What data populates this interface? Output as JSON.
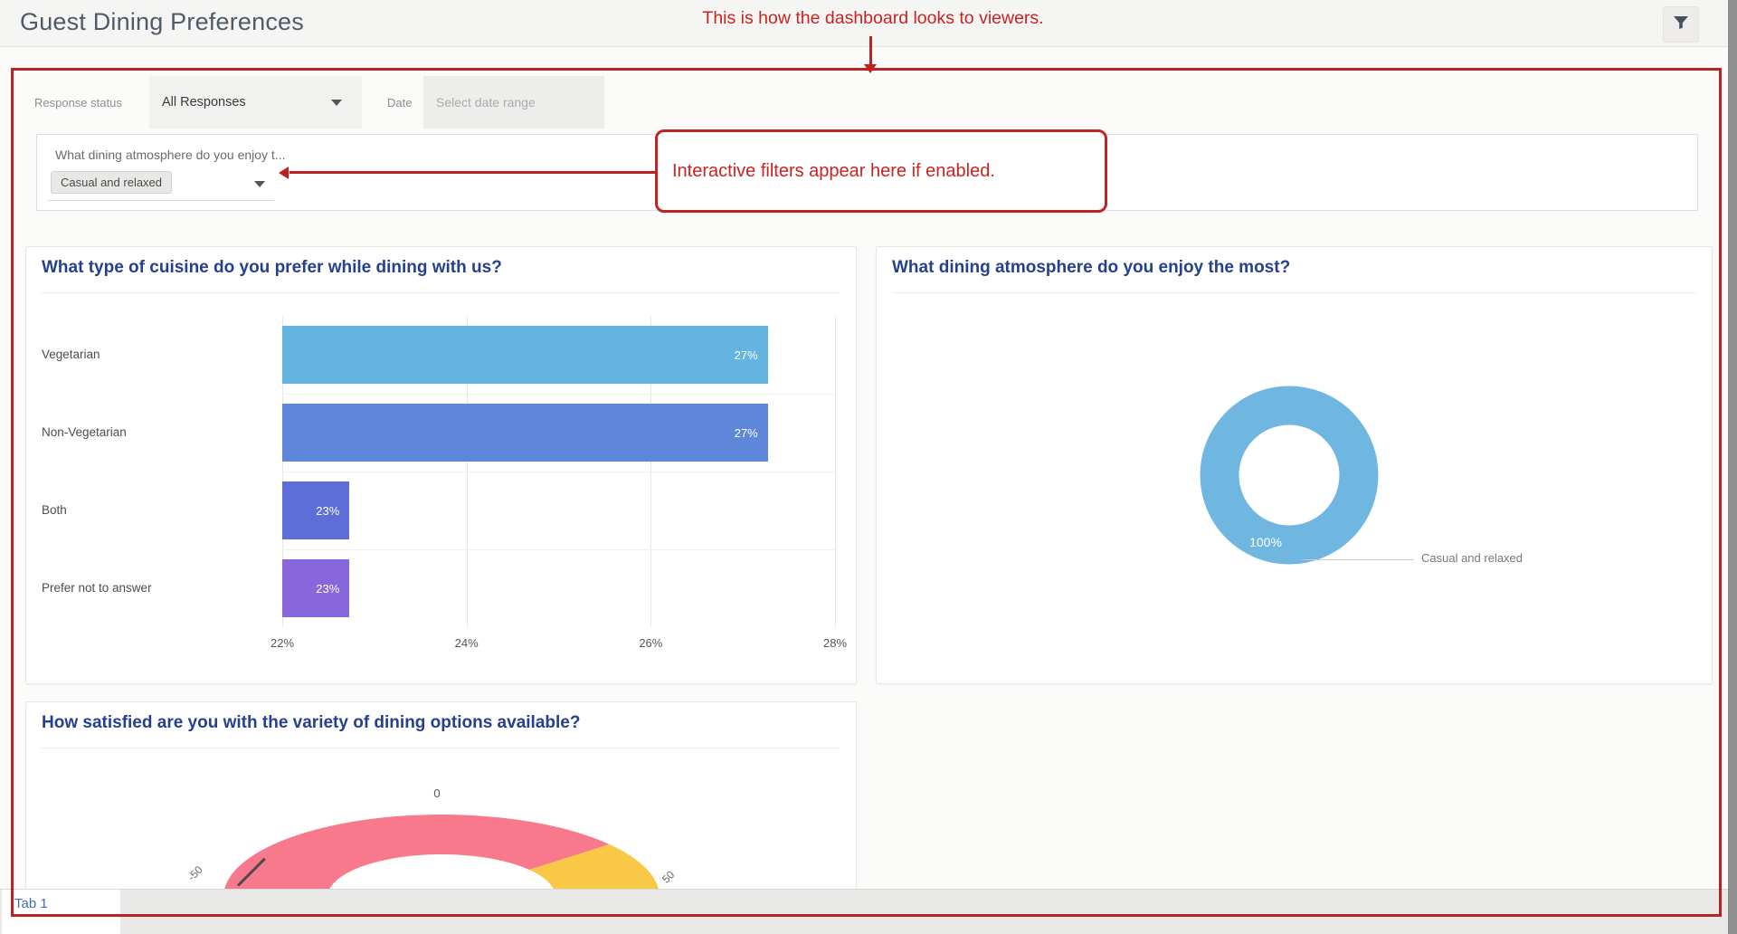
{
  "header": {
    "title": "Guest Dining Preferences"
  },
  "annotations": {
    "top_note": "This is how the dashboard looks to viewers.",
    "filter_note": "Interactive filters appear here if enabled."
  },
  "filter_bar": {
    "response_status_label": "Response status",
    "response_status_value": "All Responses",
    "date_label": "Date",
    "date_placeholder": "Select date range"
  },
  "question_filter": {
    "label": "What dining atmosphere do you enjoy t...",
    "selected_value": "Casual and relaxed"
  },
  "colors": {
    "annotation_red": "#C02020",
    "card_title_navy": "#25408F",
    "tab_link_blue": "#3B6FB8"
  },
  "charts": [
    {
      "title": "What type of cuisine do you prefer while dining with us?",
      "chart_data": {
        "type": "bar",
        "orientation": "horizontal",
        "categories": [
          "Vegetarian",
          "Non-Vegetarian",
          "Both",
          "Prefer not to answer"
        ],
        "values": [
          27,
          27,
          23,
          23
        ],
        "value_labels": [
          "27%",
          "27%",
          "23%",
          "23%"
        ],
        "plot_values": [
          27.27,
          27.27,
          22.73,
          22.73
        ],
        "bar_colors": [
          "#63B4DE",
          "#5E87DB",
          "#5D6ED8",
          "#8866DC"
        ],
        "xlim": [
          22,
          28
        ],
        "x_ticks": [
          {
            "value": 22,
            "label": "22%"
          },
          {
            "value": 24,
            "label": "24%"
          },
          {
            "value": 26,
            "label": "26%"
          },
          {
            "value": 28,
            "label": "28%"
          }
        ],
        "grid": true,
        "legend": "none"
      }
    },
    {
      "title": "What dining atmosphere do you enjoy the most?",
      "chart_data": {
        "type": "pie",
        "donut": true,
        "slices": [
          {
            "label": "Casual and relaxed",
            "value": 100,
            "value_label": "100%",
            "color": "#6FB6E0"
          }
        ],
        "legend": "none"
      }
    },
    {
      "title": "How satisfied are you with the variety of dining options available?",
      "chart_data": {
        "type": "gauge",
        "range": [
          -50,
          50
        ],
        "axis_labels": [
          {
            "value": -50,
            "label": "-50"
          },
          {
            "value": 0,
            "label": "0"
          },
          {
            "value": 50,
            "label": "50"
          }
        ],
        "segments": [
          {
            "from": -50,
            "to": 28,
            "color": "#F8798B"
          },
          {
            "from": 28,
            "to": 50,
            "color": "#F9C847"
          }
        ],
        "needle_value": -41,
        "clipped_bottom": true
      }
    }
  ],
  "tab_bar": {
    "tabs": [
      {
        "label": "Tab 1",
        "active": true
      }
    ]
  }
}
